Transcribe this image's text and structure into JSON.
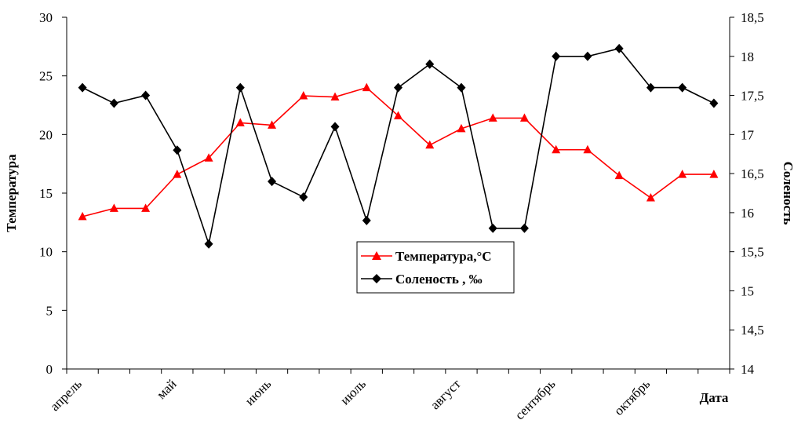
{
  "chart_data": {
    "type": "line",
    "x": [
      1,
      2,
      3,
      4,
      5,
      6,
      7,
      8,
      9,
      10,
      11,
      12,
      13,
      14,
      15,
      16,
      17,
      18,
      19,
      20,
      21
    ],
    "x_tick_labels": [
      {
        "at": 1,
        "label": "апрель"
      },
      {
        "at": 4,
        "label": "май"
      },
      {
        "at": 7,
        "label": "июнь"
      },
      {
        "at": 10,
        "label": "июль"
      },
      {
        "at": 13,
        "label": "август"
      },
      {
        "at": 16,
        "label": "сентябрь"
      },
      {
        "at": 19,
        "label": "октябрь"
      }
    ],
    "xlabel": "Дата",
    "ylabel": "Температура",
    "y2label": "Соленость",
    "ylim": [
      0,
      30
    ],
    "y_ticks": [
      "0",
      "5",
      "10",
      "15",
      "20",
      "25",
      "30"
    ],
    "y2lim": [
      14,
      18.5
    ],
    "y2_ticks": [
      "14",
      "14,5",
      "15",
      "15,5",
      "16",
      "16,5",
      "17",
      "17,5",
      "18",
      "18,5"
    ],
    "grid": false,
    "legend_position": "center",
    "series": [
      {
        "name": "Температура,°С",
        "axis": "left",
        "color": "#ff0000",
        "marker": "triangle",
        "values": [
          13,
          13.7,
          13.7,
          16.6,
          18,
          21,
          20.8,
          23.3,
          23.2,
          24,
          21.6,
          19.1,
          20.5,
          21.4,
          21.4,
          18.7,
          18.7,
          16.5,
          14.6,
          16.6,
          16.6
        ]
      },
      {
        "name": "Соленость , ‰",
        "axis": "right",
        "color": "#000000",
        "marker": "diamond",
        "values": [
          17.6,
          17.4,
          17.5,
          16.8,
          15.6,
          17.6,
          16.4,
          16.2,
          17.1,
          15.9,
          17.6,
          17.9,
          17.6,
          15.8,
          15.8,
          18,
          18,
          18.1,
          17.6,
          17.6,
          17.4
        ]
      }
    ]
  }
}
